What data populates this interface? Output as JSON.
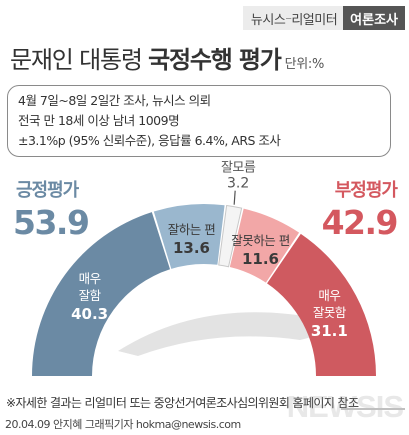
{
  "header": {
    "brand_left": "뉴시스",
    "brand_dash": "–",
    "brand_mid": "리얼미터",
    "brand_right": "여론조사"
  },
  "title": {
    "regular": "문재인 대통령 ",
    "bold": "국정수행 평가",
    "unit": "단위:%"
  },
  "info": [
    "4월 7일~8일 2일간 조사, 뉴시스 의뢰",
    "전국 만 18세 이상 남녀 1009명",
    "±3.1%p (95% 신뢰수준), 응답률 6.4%, ARS 조사"
  ],
  "colors": {
    "positive_dark": "#6b8aa4",
    "positive_light": "#9ab7ce",
    "negative_light": "#f2a7a7",
    "negative_dark": "#cf5a60",
    "unknown": "#f4f4f4"
  },
  "chart_data": {
    "type": "pie",
    "title": "국정수행 평가",
    "unit": "%",
    "summary": [
      {
        "label": "긍정평가",
        "value": 53.9,
        "color": "#6b8aa4"
      },
      {
        "label": "부정평가",
        "value": 42.9,
        "color": "#d4585f"
      }
    ],
    "slices": [
      {
        "label": "매우 잘함",
        "label_lines": [
          "매우",
          "잘함"
        ],
        "value": 40.3,
        "color": "#6b8aa4"
      },
      {
        "label": "잘하는 편",
        "label_lines": [
          "잘하는 편"
        ],
        "value": 13.6,
        "color": "#9ab7ce"
      },
      {
        "label": "잘모름",
        "label_lines": [
          "잘모름"
        ],
        "value": 3.2,
        "color": "#f4f4f4"
      },
      {
        "label": "잘못하는 편",
        "label_lines": [
          "잘못하는 편"
        ],
        "value": 11.6,
        "color": "#f2a7a7"
      },
      {
        "label": "매우 잘못함",
        "label_lines": [
          "매우",
          "잘못함"
        ],
        "value": 31.1,
        "color": "#cf5a60"
      }
    ]
  },
  "footer": {
    "note": "※자세한 결과는 리얼미터 또는 중앙선거여론조사심의위원회 홈페이지 참조",
    "credit": "20.04.09 안지혜 그래픽기자  hokma@newsis.com",
    "watermark": "NEWSIS"
  }
}
